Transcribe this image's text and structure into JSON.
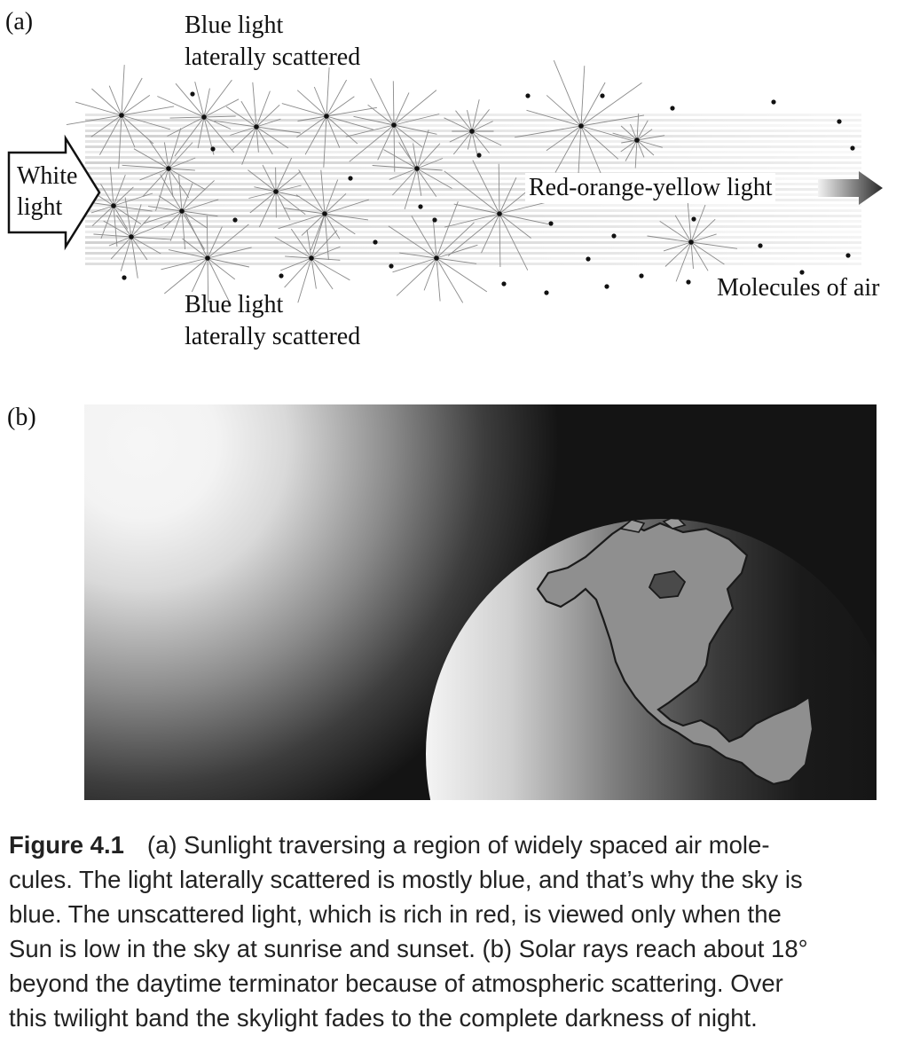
{
  "panel_a": {
    "panel_label": "(a)",
    "blue_top_line1": "Blue light",
    "blue_top_line2": "laterally scattered",
    "blue_bottom_line1": "Blue light",
    "blue_bottom_line2": "laterally scattered",
    "white_line1": "White",
    "white_line2": "light",
    "red_label": "Red-orange-yellow light",
    "molecules_label": "Molecules of air"
  },
  "panel_b": {
    "panel_label": "(b)"
  },
  "caption": {
    "figure_number": "Figure 4.1",
    "lines": [
      "(a) Sunlight traversing a region of widely spaced air mole-",
      "cules. The light laterally scattered is mostly blue, and that’s why the sky is",
      "blue. The unscattered light, which is rich in red, is viewed only when the",
      "Sun is low in the sky at sunrise and sunset. (b) Solar rays reach about 18°",
      "beyond the daytime terminator because of atmospheric scattering. Over",
      "this twilight band the skylight fades to the complete darkness of night."
    ]
  }
}
